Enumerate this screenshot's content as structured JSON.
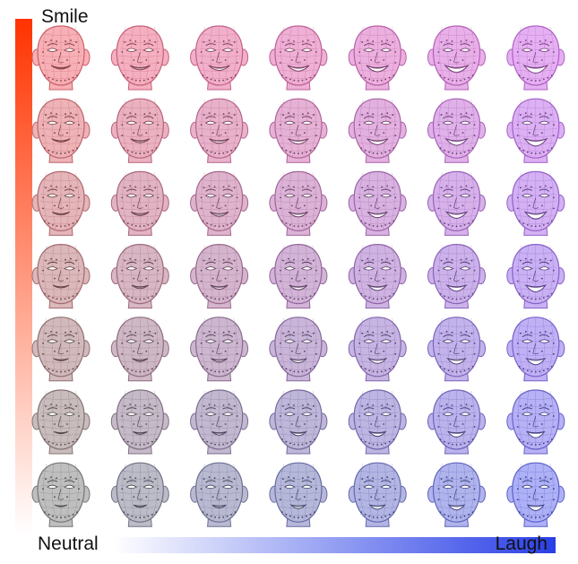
{
  "axes": {
    "vertical_label": "Smile",
    "origin_label": "Neutral",
    "horizontal_label": "Laugh",
    "vertical_color": "#ff3300",
    "horizontal_color": "#2a3fe6"
  },
  "grid": {
    "rows": 7,
    "cols": 7,
    "smile_levels": [
      1,
      0.833,
      0.667,
      0.5,
      0.333,
      0.167,
      0
    ],
    "laugh_levels": [
      0,
      0.167,
      0.333,
      0.5,
      0.667,
      0.833,
      1
    ],
    "neutral_tint": "#8a8a8a",
    "smile_tint": "#f0707a",
    "laugh_tint": "#6b72ee",
    "blend_tint": "#d070e8",
    "face_icon": "wireframe-face-icon"
  }
}
